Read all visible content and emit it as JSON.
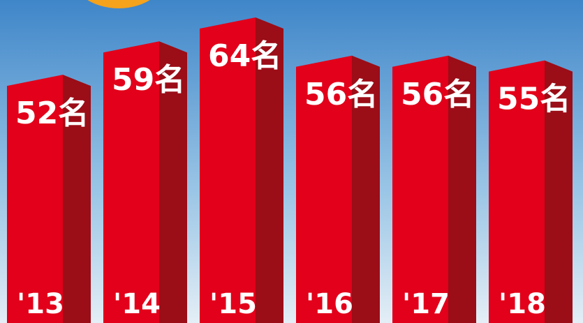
{
  "chart_data": {
    "type": "bar3d",
    "categories": [
      "'13",
      "'14",
      "'15",
      "'16",
      "'17",
      "'18"
    ],
    "values": [
      52,
      59,
      64,
      56,
      56,
      55
    ],
    "value_labels": [
      "52名",
      "59名",
      "64名",
      "56名",
      "56名",
      "55名"
    ],
    "color": "#e2001a",
    "side_color": "#9b0d17"
  }
}
